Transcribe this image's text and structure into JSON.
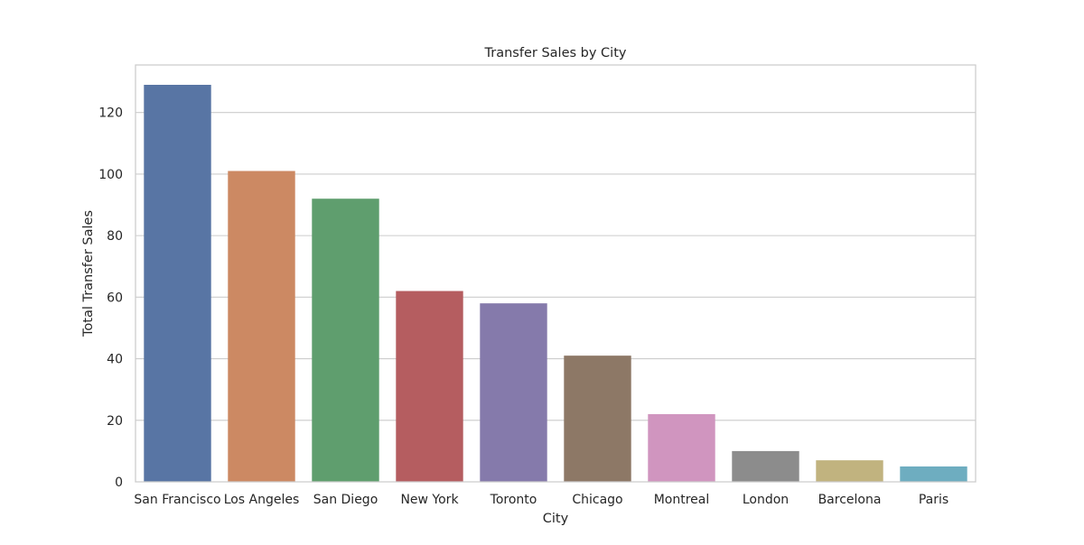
{
  "chart_data": {
    "type": "bar",
    "title": "Transfer Sales by City",
    "xlabel": "City",
    "ylabel": "Total Transfer Sales",
    "categories": [
      "San Francisco",
      "Los Angeles",
      "San Diego",
      "New York",
      "Toronto",
      "Chicago",
      "Montreal",
      "London",
      "Barcelona",
      "Paris"
    ],
    "values": [
      129,
      101,
      92,
      62,
      58,
      41,
      22,
      10,
      7,
      5
    ],
    "colors": [
      "#5875a4",
      "#cc8963",
      "#5f9e6e",
      "#b55d60",
      "#857aab",
      "#8d7866",
      "#d095bf",
      "#8c8c8c",
      "#c1b37f",
      "#6eadc0"
    ],
    "ylim": [
      0,
      135.45
    ],
    "yticks": [
      0,
      20,
      40,
      60,
      80,
      100,
      120
    ],
    "grid": true,
    "legend": "none"
  }
}
